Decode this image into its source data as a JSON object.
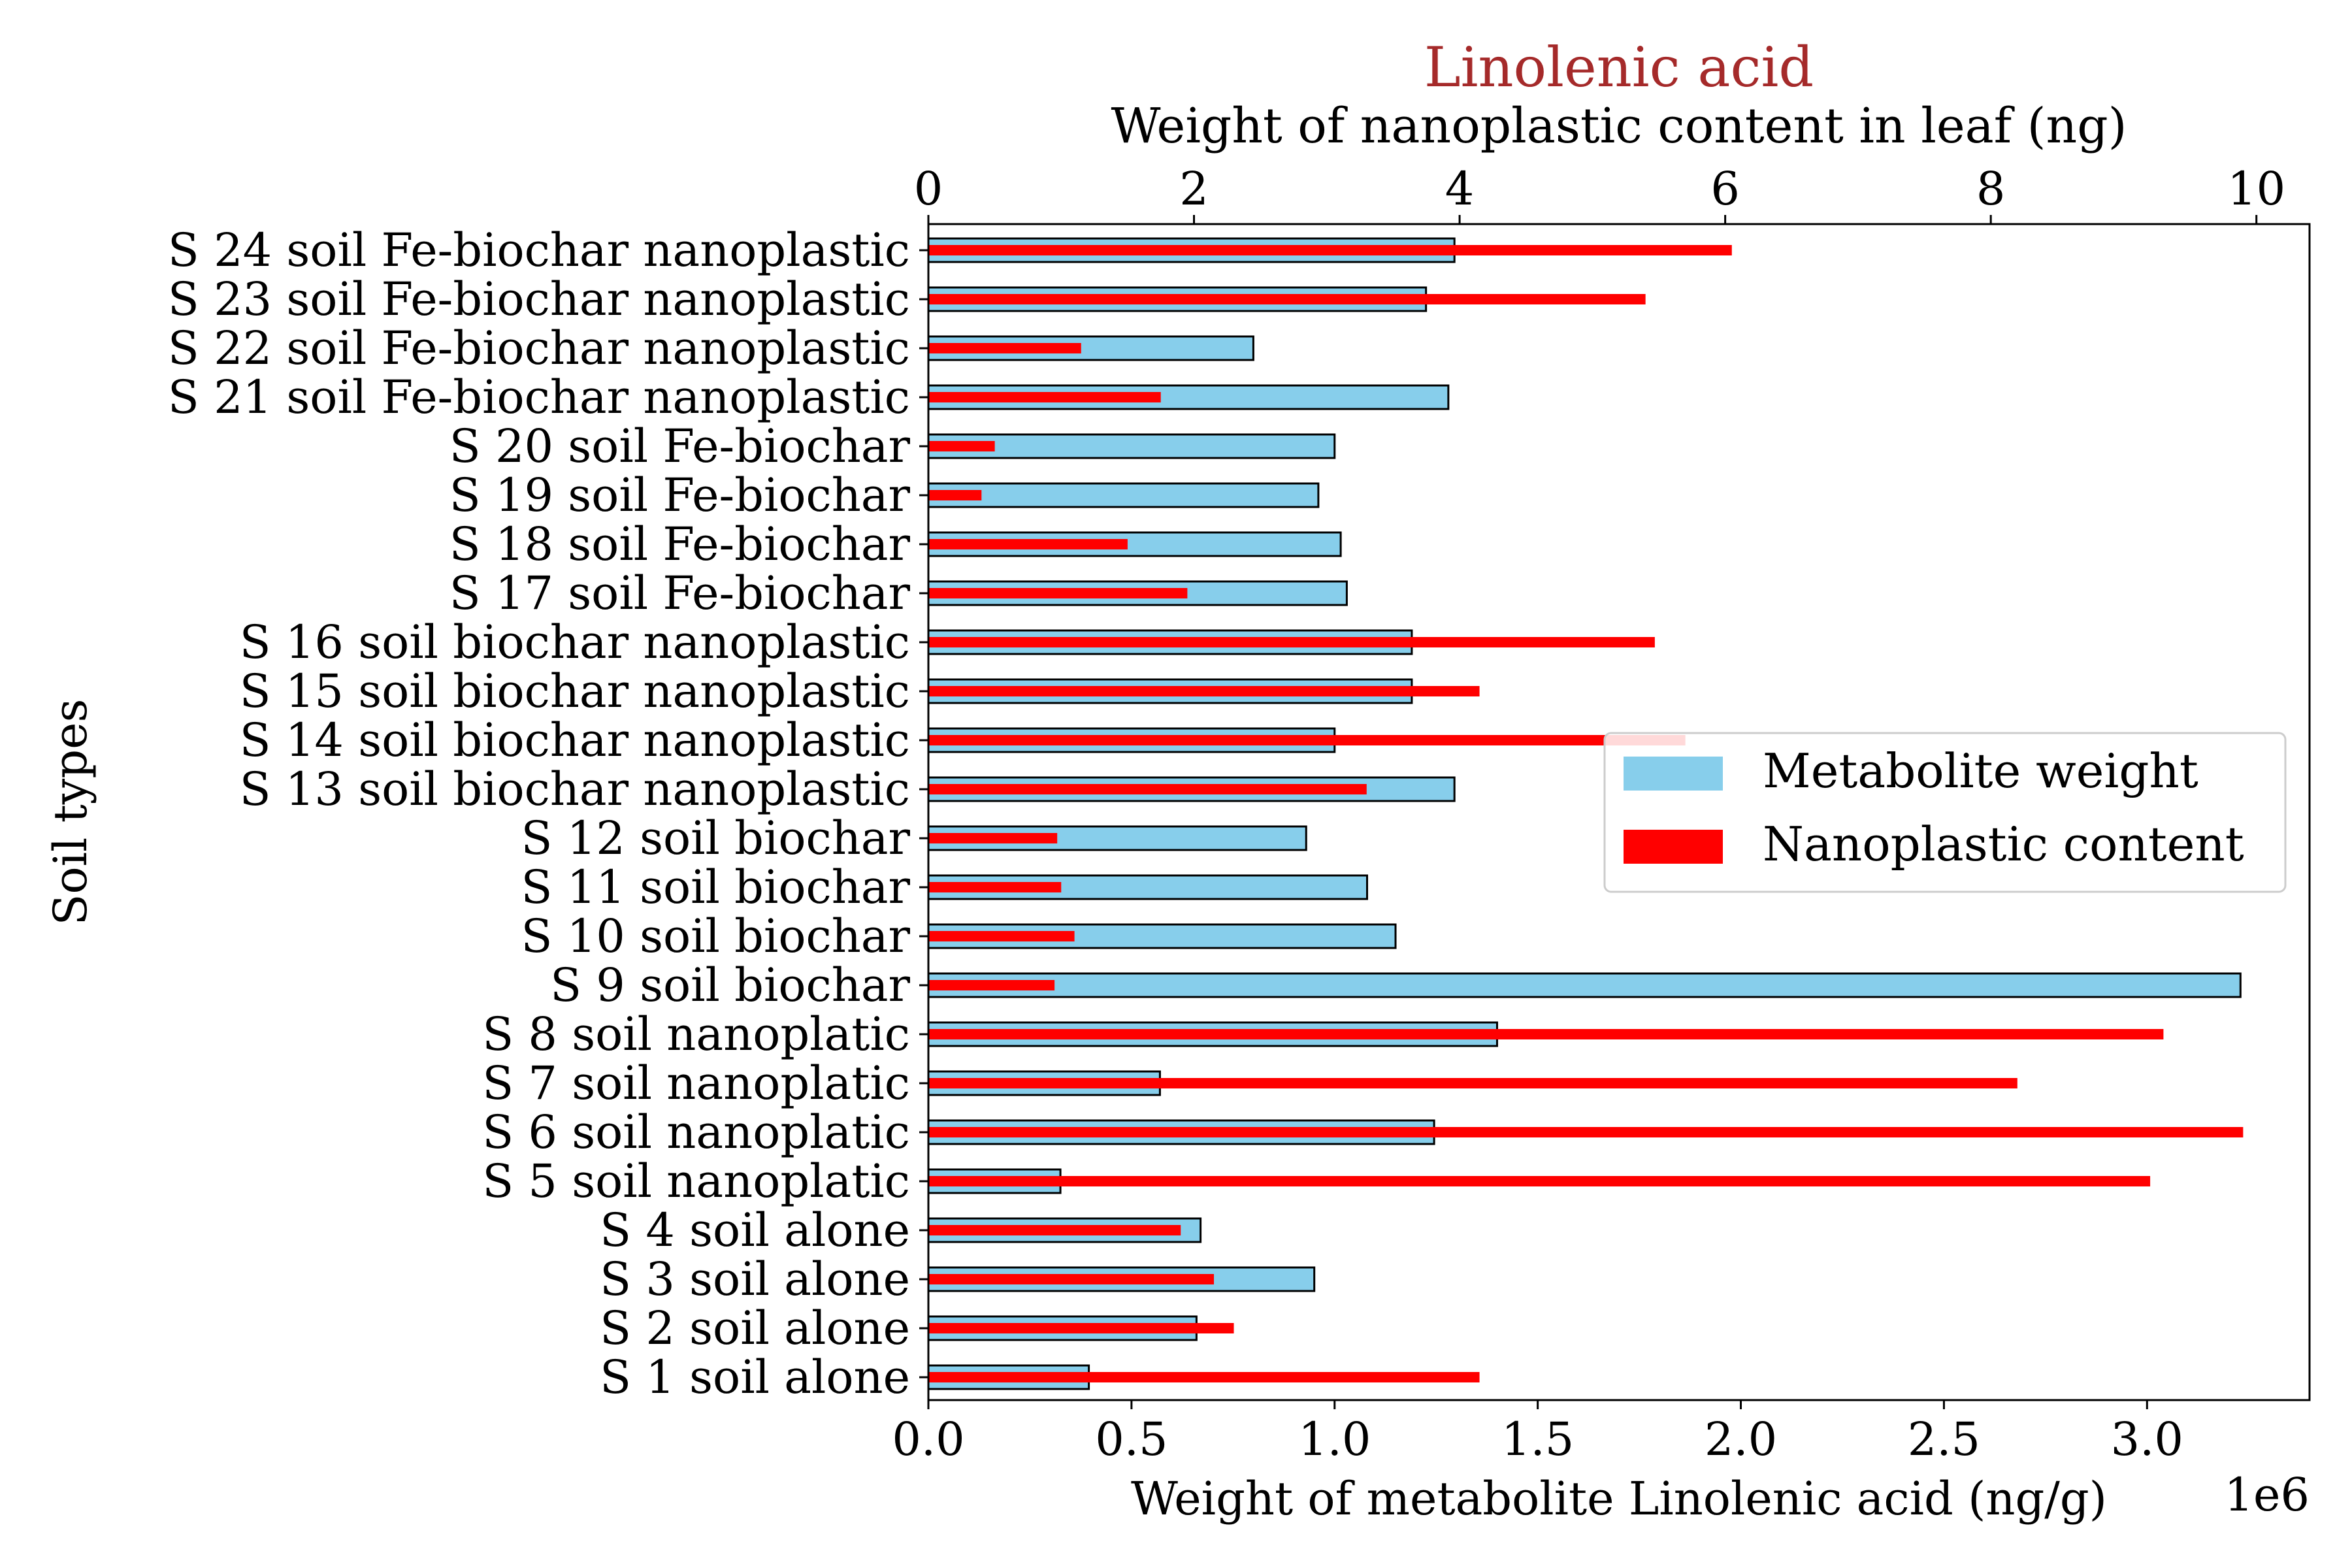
{
  "chart_data": {
    "type": "bar",
    "orientation": "horizontal",
    "title": "Linolenic acid",
    "title_color": "#a52a2a",
    "ylabel": "Soil types",
    "xlabel_bottom": "Weight of metabolite Linolenic acid (ng/g)",
    "xlabel_top": "Weight of nanoplastic content in leaf (ng)",
    "bottom_axis_multiplier": "1e6",
    "xlim_bottom": [
      0,
      3400000
    ],
    "xlim_top": [
      0,
      10.4
    ],
    "bottom_ticks": [
      "0.0",
      "0.5",
      "1.0",
      "1.5",
      "2.0",
      "2.5",
      "3.0"
    ],
    "bottom_tick_values": [
      0,
      500000,
      1000000,
      1500000,
      2000000,
      2500000,
      3000000
    ],
    "top_ticks": [
      "0",
      "2",
      "4",
      "6",
      "8",
      "10"
    ],
    "top_tick_values": [
      0,
      2,
      4,
      6,
      8,
      10
    ],
    "categories": [
      "S 1 soil alone",
      "S 2 soil alone",
      "S 3 soil alone",
      "S 4 soil alone",
      "S 5 soil nanoplatic",
      "S 6 soil nanoplatic",
      "S 7 soil nanoplatic",
      "S 8 soil nanoplatic",
      "S 9 soil biochar",
      "S 10 soil biochar",
      "S 11 soil biochar",
      "S 12 soil biochar",
      "S 13 soil biochar nanoplastic",
      "S 14 soil biochar nanoplastic",
      "S 15 soil biochar nanoplastic",
      "S 16 soil biochar nanoplastic",
      "S 17 soil Fe-biochar",
      "S 18 soil Fe-biochar",
      "S 19 soil Fe-biochar",
      "S 20 soil Fe-biochar",
      "S 21 soil Fe-biochar nanoplastic",
      "S 22 soil Fe-biochar nanoplastic",
      "S 23 soil Fe-biochar nanoplastic",
      "S 24 soil Fe-biochar nanoplastic"
    ],
    "series": [
      {
        "name": "Metabolite weight",
        "axis": "bottom",
        "color": "#87ceeb",
        "edgecolor": "#000000",
        "values": [
          395000,
          660000,
          950000,
          670000,
          325000,
          1245000,
          570000,
          1400000,
          3230000,
          1150000,
          1080000,
          930000,
          1295000,
          1000000,
          1190000,
          1190000,
          1030000,
          1015000,
          960000,
          1000000,
          1280000,
          800000,
          1225000,
          1295000
        ]
      },
      {
        "name": "Nanoplastic content",
        "axis": "top",
        "color": "#ff0000",
        "values": [
          4.15,
          2.3,
          2.15,
          1.9,
          9.2,
          9.9,
          8.2,
          9.3,
          0.95,
          1.1,
          1.0,
          0.97,
          3.3,
          5.7,
          4.15,
          5.47,
          1.95,
          1.5,
          0.4,
          0.5,
          1.75,
          1.15,
          5.4,
          6.05
        ]
      }
    ],
    "legend": {
      "placement": "center-right",
      "entries": [
        "Metabolite weight",
        "Nanoplastic content"
      ]
    }
  }
}
